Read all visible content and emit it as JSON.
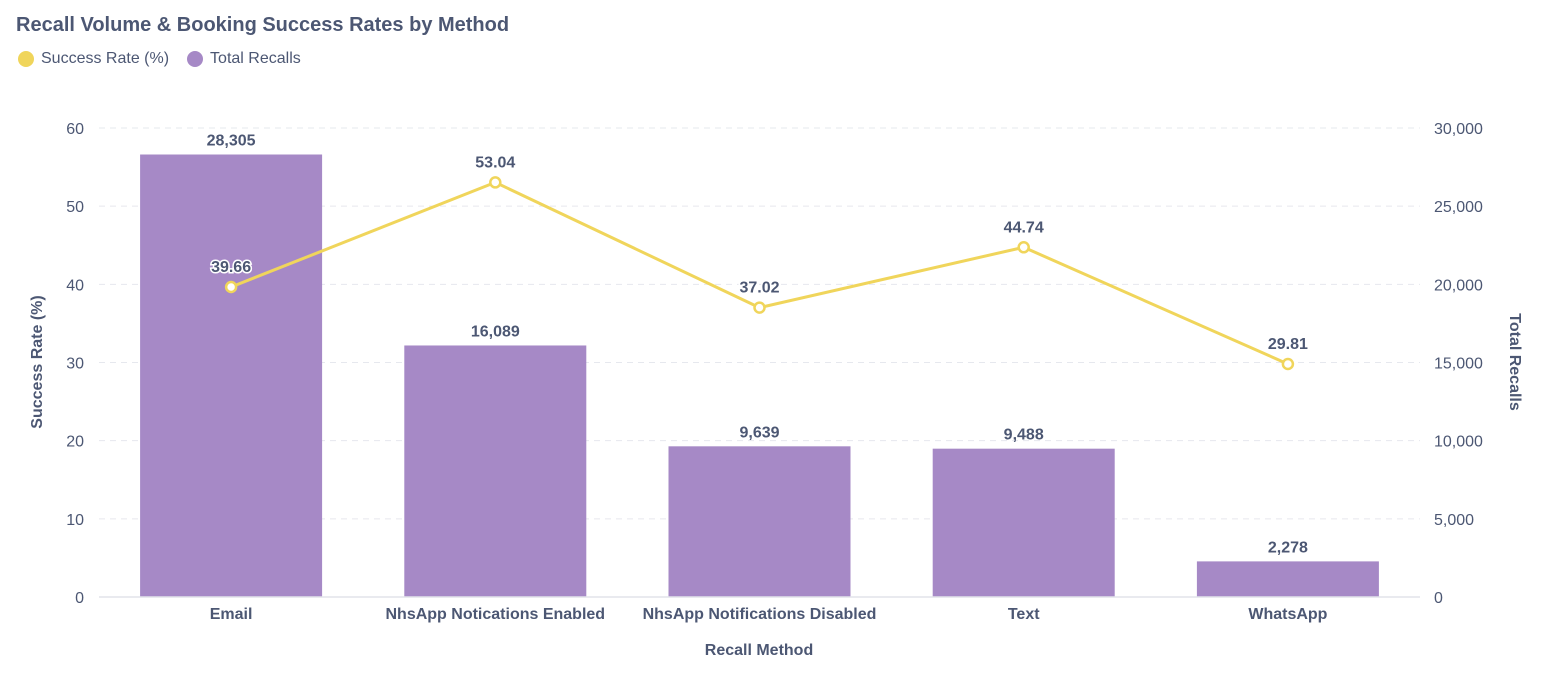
{
  "chart_data": {
    "type": "bar",
    "title": "Recall Volume & Booking Success Rates by Method",
    "xlabel": "Recall Method",
    "ylabel_left": "Success Rate (%)",
    "ylabel_right": "Total Recalls",
    "categories": [
      "Email",
      "NhsApp Notications Enabled",
      "NhsApp Notifications Disabled",
      "Text",
      "WhatsApp"
    ],
    "series": [
      {
        "name": "Success Rate (%)",
        "type": "line",
        "axis": "left",
        "color": "#f0d55b",
        "values": [
          39.66,
          53.04,
          37.02,
          44.74,
          29.81
        ],
        "labels": [
          "39.66",
          "53.04",
          "37.02",
          "44.74",
          "29.81"
        ]
      },
      {
        "name": "Total Recalls",
        "type": "bar",
        "axis": "right",
        "color": "#a689c6",
        "values": [
          28305,
          16089,
          9639,
          9488,
          2278
        ],
        "labels": [
          "28,305",
          "16,089",
          "9,639",
          "9,488",
          "2,278"
        ]
      }
    ],
    "ylim_left": [
      0,
      60
    ],
    "ylim_right": [
      0,
      30000
    ],
    "left_ticks": [
      "0",
      "10",
      "20",
      "30",
      "40",
      "50",
      "60"
    ],
    "right_ticks": [
      "0",
      "5,000",
      "10,000",
      "15,000",
      "20,000",
      "25,000",
      "30,000"
    ],
    "grid": true,
    "legend": "top-left"
  }
}
